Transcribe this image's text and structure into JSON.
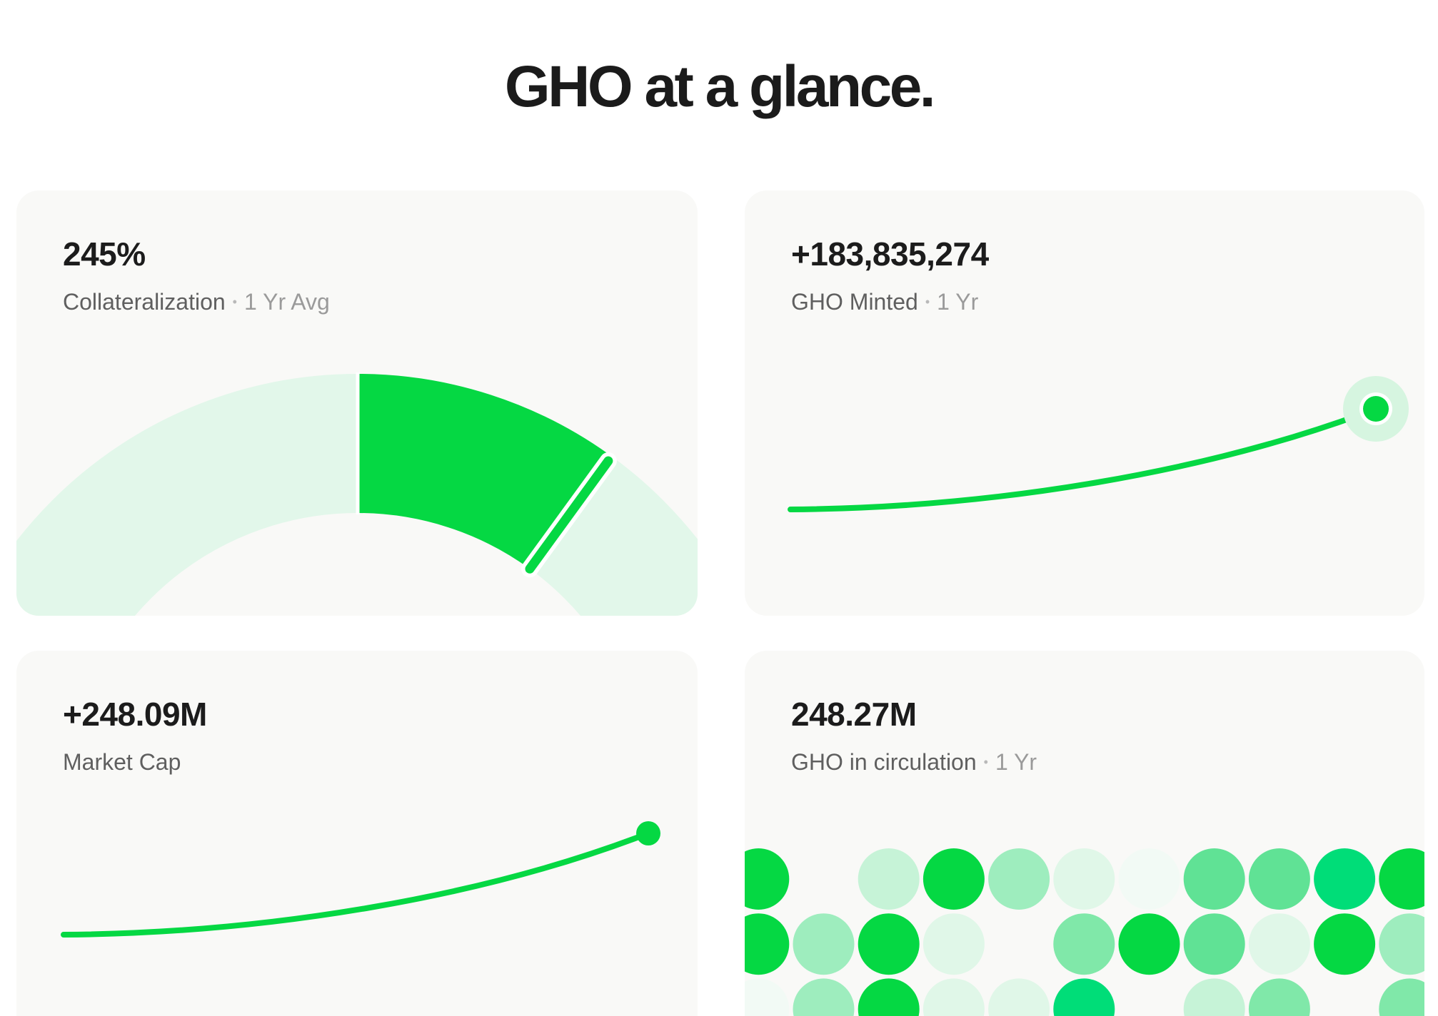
{
  "heading": "GHO at a glance.",
  "separator": "•",
  "accent_color": "#05d843",
  "track_color": "#e2f7ea",
  "halo_color": "#d6f5e0",
  "cards": {
    "collateralization": {
      "value": "245%",
      "label": "Collateralization",
      "period": "1 Yr Avg",
      "gauge": {
        "fill_start": 0.5,
        "needle": 0.7
      }
    },
    "minted": {
      "value": "+183,835,274",
      "label": "GHO Minted",
      "period": "1 Yr"
    },
    "market_cap": {
      "value": "+248.09M",
      "label": "Market Cap"
    },
    "circulation": {
      "value": "248.27M",
      "label": "GHO in circulation",
      "period": "1 Yr",
      "dot_grid": {
        "palette": [
          "#f2faf5",
          "#e0f7e8",
          "#c6f3d7",
          "#9eedbe",
          "#80e8a9",
          "#60e295",
          "#00dd78",
          "#05d843"
        ],
        "rows": [
          [
            8,
            0,
            3,
            8,
            4,
            2,
            1,
            6,
            6,
            7,
            8
          ],
          [
            8,
            4,
            8,
            2,
            0,
            5,
            8,
            6,
            2,
            8,
            4
          ],
          [
            1,
            4,
            8,
            2,
            2,
            7,
            0,
            3,
            5,
            0,
            5
          ]
        ]
      }
    }
  }
}
